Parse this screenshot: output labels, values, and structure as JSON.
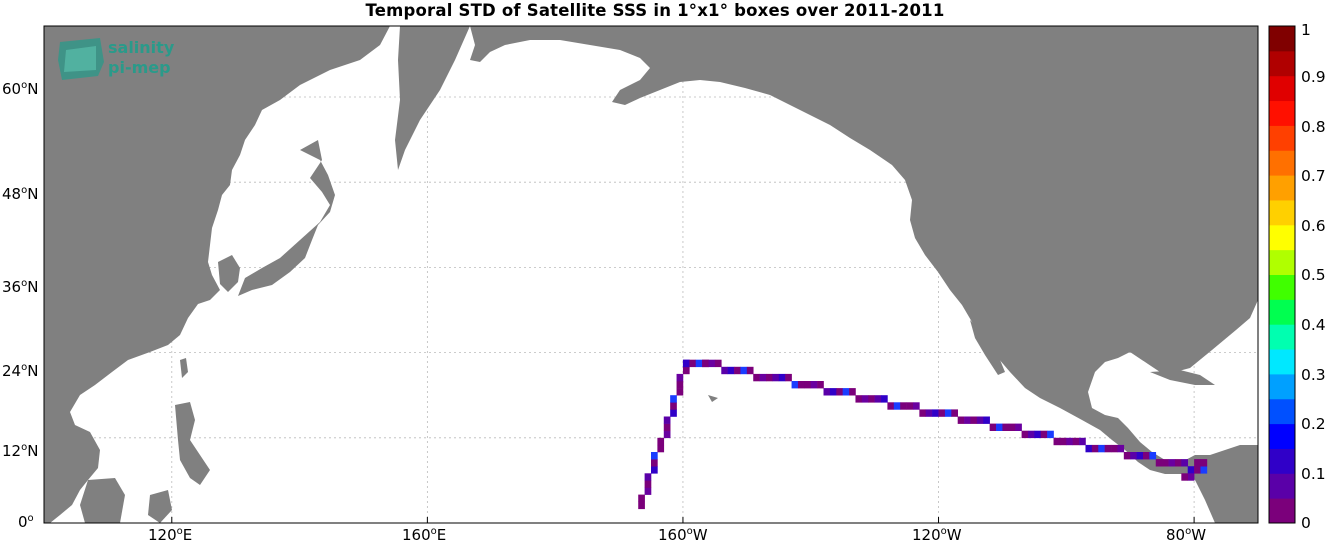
{
  "title": "Temporal STD of Satellite SSS in 1°x1° boxes over 2011-2011",
  "logo": {
    "line1": "salinity",
    "line2": "pi-mep",
    "color": "#2a9a8a"
  },
  "map": {
    "land_color": "#808080",
    "ocean_color": "#ffffff",
    "grid": true,
    "lon_ticks": [
      {
        "deg": "120",
        "hemi": "E"
      },
      {
        "deg": "160",
        "hemi": "E"
      },
      {
        "deg": "160",
        "hemi": "W"
      },
      {
        "deg": "120",
        "hemi": "W"
      },
      {
        "deg": "80",
        "hemi": "W"
      }
    ],
    "lat_ticks": [
      {
        "deg": "60",
        "hemi": "N"
      },
      {
        "deg": "48",
        "hemi": "N"
      },
      {
        "deg": "36",
        "hemi": "N"
      },
      {
        "deg": "24",
        "hemi": "N"
      },
      {
        "deg": "12",
        "hemi": "N"
      },
      {
        "deg": "0",
        "hemi": ""
      }
    ],
    "track_leg1": {
      "from_lonlat": [
        -167,
        2
      ],
      "to_lonlat": [
        -160,
        22
      ]
    },
    "track_leg2": {
      "from_lonlat": [
        -157,
        22
      ],
      "to_lonlat": [
        -79,
        7
      ]
    },
    "track_value_range": [
      0.0,
      0.4
    ]
  },
  "colorbar": {
    "labels": [
      "1",
      "0.9",
      "0.8",
      "0.7",
      "0.6",
      "0.5",
      "0.4",
      "0.3",
      "0.2",
      "0.1",
      "0"
    ],
    "min": 0,
    "max": 1,
    "colors": [
      "#7b007b",
      "#5a00a8",
      "#3000c8",
      "#0000ff",
      "#0050ff",
      "#00a0ff",
      "#00e8ff",
      "#00ffb0",
      "#00ff50",
      "#40ff00",
      "#b0ff00",
      "#ffff00",
      "#ffd000",
      "#ffa000",
      "#ff7000",
      "#ff4000",
      "#ff1000",
      "#e00000",
      "#b00000",
      "#800000"
    ]
  }
}
